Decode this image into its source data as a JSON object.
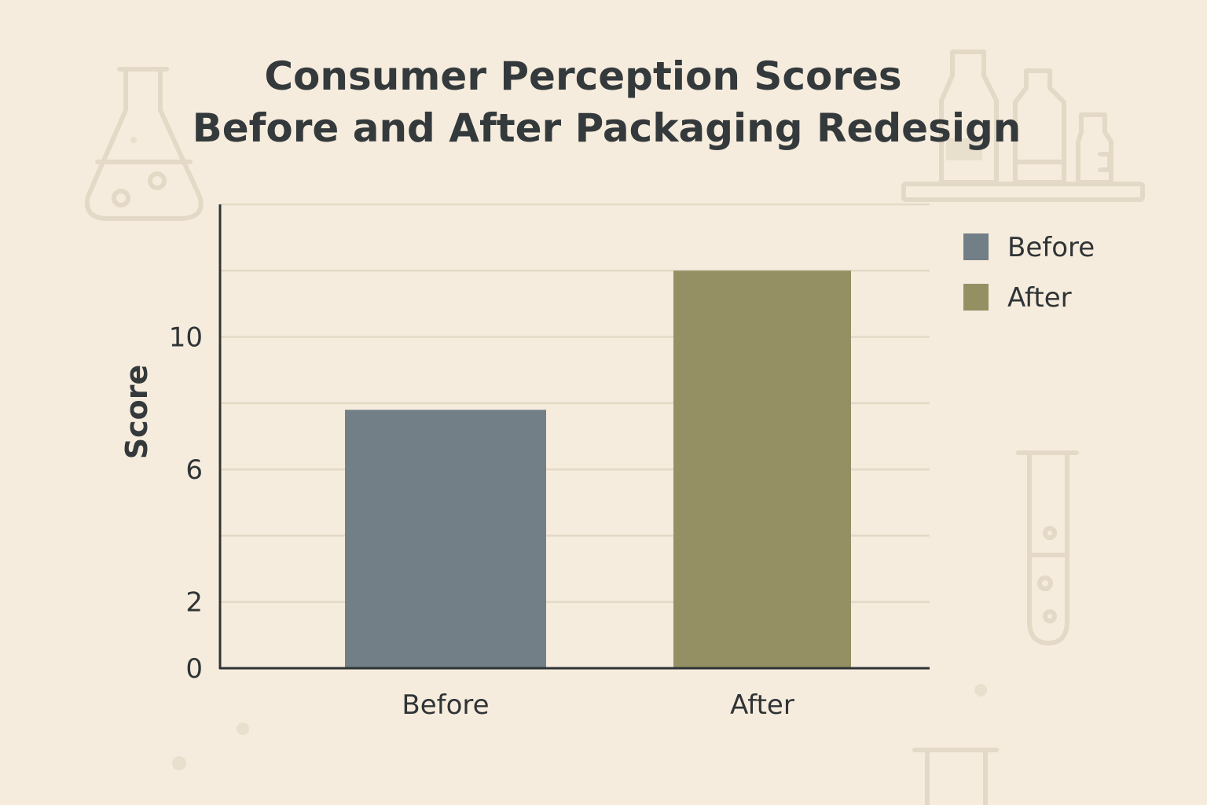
{
  "colors": {
    "background": "#f6ecdd",
    "before": "#737f86",
    "after": "#958f64",
    "text": "#343a3c",
    "grid": "#e3d9c6",
    "axis": "#2f3436"
  },
  "decorations": [
    "flask-icon",
    "bottles-icon",
    "test-tube-icon",
    "beaker-icon"
  ],
  "chart_data": {
    "type": "bar",
    "title": [
      "Consumer Perception Scores",
      "Before and After Packaging Redesign"
    ],
    "xlabel": "",
    "ylabel": "Score",
    "categories": [
      "Before",
      "After"
    ],
    "values": [
      7.8,
      12.0
    ],
    "bar_colors": [
      "#737f86",
      "#958f64"
    ],
    "ylim": [
      0,
      14
    ],
    "yticks": [
      0,
      2,
      6,
      10
    ],
    "ytick_labels": [
      "0",
      "2",
      "6",
      "10"
    ],
    "gridlines": [
      2,
      4,
      6,
      8,
      10,
      12,
      14
    ],
    "grid": true,
    "legend": {
      "position": "right",
      "entries": [
        {
          "label": "Before",
          "color": "#737f86"
        },
        {
          "label": "After",
          "color": "#958f64"
        }
      ]
    }
  }
}
